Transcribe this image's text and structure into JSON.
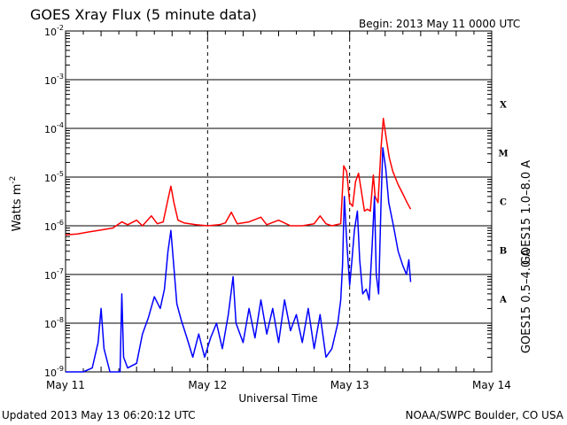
{
  "chart_data": {
    "type": "line",
    "title": "GOES Xray Flux (5 minute data)",
    "begin_label": "Begin:  2013 May 11 0000 UTC",
    "ylabel": {
      "base": "Watts m",
      "exp": "-2"
    },
    "xlabel": "Universal Time",
    "footer_left": "Updated 2013 May 13 06:20:12 UTC",
    "footer_right": "NOAA/SWPC Boulder, CO USA",
    "x_ticks": [
      "May 11",
      "May 12",
      "May 13",
      "May 14"
    ],
    "x_range_hours": [
      0,
      72
    ],
    "y_scale": "log",
    "y_decades": [
      -9,
      -8,
      -7,
      -6,
      -5,
      -4,
      -3,
      -2
    ],
    "y_tick_labels": [
      {
        "base": "10",
        "exp": "-9"
      },
      {
        "base": "10",
        "exp": "-8"
      },
      {
        "base": "10",
        "exp": "-7"
      },
      {
        "base": "10",
        "exp": "-6"
      },
      {
        "base": "10",
        "exp": "-5"
      },
      {
        "base": "10",
        "exp": "-4"
      },
      {
        "base": "10",
        "exp": "-3"
      },
      {
        "base": "10",
        "exp": "-2"
      }
    ],
    "flare_classes": [
      {
        "label": "X",
        "exp": -4
      },
      {
        "label": "M",
        "exp": -5
      },
      {
        "label": "C",
        "exp": -6
      },
      {
        "label": "B",
        "exp": -7
      },
      {
        "label": "A",
        "exp": -8
      }
    ],
    "grid": "horizontal lines at each decade, dashed vertical lines at day boundaries",
    "series": [
      {
        "name": "GOES15 1.0–8.0 A",
        "color": "#ff0000",
        "points": [
          [
            0,
            6.5e-07
          ],
          [
            2,
            6.8e-07
          ],
          [
            4,
            7.5e-07
          ],
          [
            6,
            8.2e-07
          ],
          [
            8,
            9e-07
          ],
          [
            9.5,
            1.2e-06
          ],
          [
            10.5,
            1.05e-06
          ],
          [
            12,
            1.3e-06
          ],
          [
            13,
            1e-06
          ],
          [
            14.5,
            1.6e-06
          ],
          [
            15.5,
            1.1e-06
          ],
          [
            16.5,
            1.2e-06
          ],
          [
            17.3,
            3.5e-06
          ],
          [
            17.8,
            6.5e-06
          ],
          [
            18.3,
            3e-06
          ],
          [
            19,
            1.3e-06
          ],
          [
            20,
            1.15e-06
          ],
          [
            22,
            1.05e-06
          ],
          [
            24,
            1e-06
          ],
          [
            26,
            1.05e-06
          ],
          [
            27,
            1.15e-06
          ],
          [
            28,
            1.9e-06
          ],
          [
            29,
            1.1e-06
          ],
          [
            31,
            1.2e-06
          ],
          [
            33,
            1.5e-06
          ],
          [
            34,
            1.05e-06
          ],
          [
            36,
            1.3e-06
          ],
          [
            38,
            1e-06
          ],
          [
            40,
            1e-06
          ],
          [
            42,
            1.1e-06
          ],
          [
            43,
            1.6e-06
          ],
          [
            44,
            1.1e-06
          ],
          [
            45,
            1e-06
          ],
          [
            46.5,
            1.1e-06
          ],
          [
            47,
            1.7e-05
          ],
          [
            47.5,
            1.3e-05
          ],
          [
            48,
            3e-06
          ],
          [
            48.5,
            2.5e-06
          ],
          [
            49,
            8e-06
          ],
          [
            49.5,
            1.2e-05
          ],
          [
            50,
            5e-06
          ],
          [
            50.5,
            2e-06
          ],
          [
            51,
            2.2e-06
          ],
          [
            51.5,
            2e-06
          ],
          [
            52,
            1.1e-05
          ],
          [
            52.3,
            4e-06
          ],
          [
            52.8,
            3e-06
          ],
          [
            53.3,
            4e-05
          ],
          [
            53.7,
            0.00016
          ],
          [
            54.2,
            6e-05
          ],
          [
            54.7,
            2.5e-05
          ],
          [
            55.3,
            1.3e-05
          ],
          [
            56.2,
            7e-06
          ],
          [
            57,
            4.5e-06
          ],
          [
            57.7,
            3e-06
          ],
          [
            58.3,
            2.2e-06
          ]
        ]
      },
      {
        "name": "GOES15 0.5–4.0 A",
        "color": "#0000ff",
        "points": [
          [
            0,
            1e-09
          ],
          [
            3,
            1e-09
          ],
          [
            4.5,
            1.2e-09
          ],
          [
            5.5,
            4e-09
          ],
          [
            6,
            2e-08
          ],
          [
            6.5,
            3e-09
          ],
          [
            7.5,
            1e-09
          ],
          [
            9.2,
            1e-09
          ],
          [
            9.5,
            4e-08
          ],
          [
            9.8,
            2e-09
          ],
          [
            10.5,
            1.2e-09
          ],
          [
            12,
            1.5e-09
          ],
          [
            13,
            6e-09
          ],
          [
            14,
            1.3e-08
          ],
          [
            15,
            3.5e-08
          ],
          [
            16,
            2e-08
          ],
          [
            16.7,
            5e-08
          ],
          [
            17.3,
            3e-07
          ],
          [
            17.8,
            8e-07
          ],
          [
            18.2,
            2e-07
          ],
          [
            18.8,
            2.5e-08
          ],
          [
            19.5,
            1.2e-08
          ],
          [
            20.5,
            5e-09
          ],
          [
            21.5,
            2e-09
          ],
          [
            22.5,
            6e-09
          ],
          [
            23.5,
            2e-09
          ],
          [
            24.5,
            5e-09
          ],
          [
            25.5,
            1e-08
          ],
          [
            26.5,
            3e-09
          ],
          [
            27.5,
            1.5e-08
          ],
          [
            28.3,
            9e-08
          ],
          [
            28.8,
            1e-08
          ],
          [
            30,
            4e-09
          ],
          [
            31,
            2e-08
          ],
          [
            32,
            5e-09
          ],
          [
            33,
            3e-08
          ],
          [
            34,
            6e-09
          ],
          [
            35,
            2e-08
          ],
          [
            36,
            4e-09
          ],
          [
            37,
            3e-08
          ],
          [
            38,
            7e-09
          ],
          [
            39,
            1.5e-08
          ],
          [
            40,
            4e-09
          ],
          [
            41,
            2e-08
          ],
          [
            42,
            3e-09
          ],
          [
            43,
            1.5e-08
          ],
          [
            44,
            2e-09
          ],
          [
            45,
            3e-09
          ],
          [
            46,
            1e-08
          ],
          [
            46.5,
            3e-08
          ],
          [
            46.8,
            1.5e-07
          ],
          [
            47.1,
            4e-06
          ],
          [
            47.5,
            5e-07
          ],
          [
            48,
            6e-08
          ],
          [
            48.4,
            2e-07
          ],
          [
            48.8,
            8e-07
          ],
          [
            49.3,
            2e-06
          ],
          [
            49.7,
            2e-07
          ],
          [
            50.2,
            4e-08
          ],
          [
            50.8,
            5e-08
          ],
          [
            51.3,
            3e-08
          ],
          [
            51.8,
            4e-07
          ],
          [
            52.2,
            4e-06
          ],
          [
            52.5,
            1e-07
          ],
          [
            52.9,
            4e-08
          ],
          [
            53.3,
            3e-06
          ],
          [
            53.6,
            4e-05
          ],
          [
            54.1,
            1.5e-05
          ],
          [
            54.6,
            3e-06
          ],
          [
            55.4,
            1e-06
          ],
          [
            56.2,
            3e-07
          ],
          [
            57,
            1.5e-07
          ],
          [
            57.6,
            1e-07
          ],
          [
            58,
            2e-07
          ],
          [
            58.3,
            7e-08
          ]
        ]
      }
    ]
  }
}
